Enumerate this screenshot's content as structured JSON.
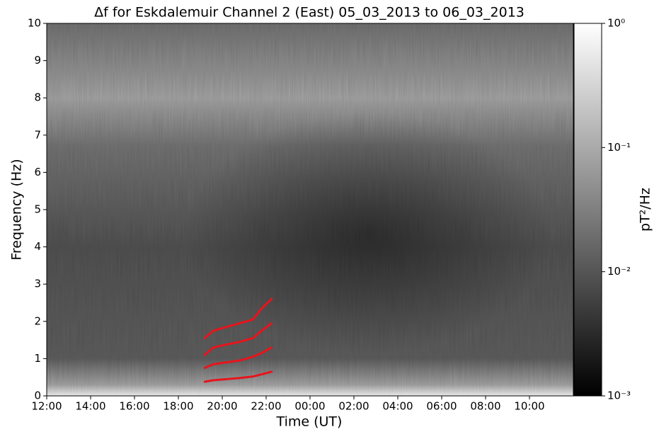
{
  "chart_data": {
    "type": "spectrogram",
    "title": "Δf for Eskdalemuir Channel 2 (East) 05_03_2013 to 06_03_2013",
    "x_label": "Time (UT)",
    "y_label": "Frequency (Hz)",
    "xlim": [
      12,
      36
    ],
    "xticks": [
      {
        "value": 12,
        "label": "12:00"
      },
      {
        "value": 14,
        "label": "14:00"
      },
      {
        "value": 16,
        "label": "16:00"
      },
      {
        "value": 18,
        "label": "18:00"
      },
      {
        "value": 20,
        "label": "20:00"
      },
      {
        "value": 22,
        "label": "22:00"
      },
      {
        "value": 24,
        "label": "00:00"
      },
      {
        "value": 26,
        "label": "02:00"
      },
      {
        "value": 28,
        "label": "04:00"
      },
      {
        "value": 30,
        "label": "06:00"
      },
      {
        "value": 32,
        "label": "08:00"
      },
      {
        "value": 34,
        "label": "10:00"
      }
    ],
    "ylim": [
      0,
      10
    ],
    "yticks": [
      0,
      1,
      2,
      3,
      4,
      5,
      6,
      7,
      8,
      9,
      10
    ],
    "colorbar": {
      "label": "pT²/Hz",
      "log": true,
      "lim": [
        0.001,
        1
      ],
      "ticks": [
        {
          "value": 1,
          "label": "10⁰"
        },
        {
          "value": 0.1,
          "label": "10⁻¹"
        },
        {
          "value": 0.01,
          "label": "10⁻²"
        },
        {
          "value": 0.001,
          "label": "10⁻³"
        }
      ]
    },
    "series": [
      {
        "color": "#e8141c",
        "x": [
          19.2,
          19.6,
          20.2,
          20.8,
          21.4,
          21.8,
          22.25
        ],
        "values": [
          1.55,
          1.75,
          1.85,
          1.95,
          2.05,
          2.35,
          2.6
        ]
      },
      {
        "color": "#e8141c",
        "x": [
          19.2,
          19.6,
          20.2,
          20.8,
          21.4,
          21.8,
          22.25
        ],
        "values": [
          1.1,
          1.3,
          1.38,
          1.45,
          1.55,
          1.75,
          1.95
        ]
      },
      {
        "color": "#e8141c",
        "x": [
          19.2,
          19.6,
          20.2,
          20.8,
          21.4,
          21.8,
          22.25
        ],
        "values": [
          0.75,
          0.85,
          0.9,
          0.95,
          1.05,
          1.15,
          1.3
        ]
      },
      {
        "color": "#e8141c",
        "x": [
          19.2,
          19.6,
          20.2,
          20.8,
          21.4,
          21.8,
          22.25
        ],
        "values": [
          0.38,
          0.42,
          0.45,
          0.48,
          0.52,
          0.58,
          0.65
        ]
      }
    ]
  }
}
